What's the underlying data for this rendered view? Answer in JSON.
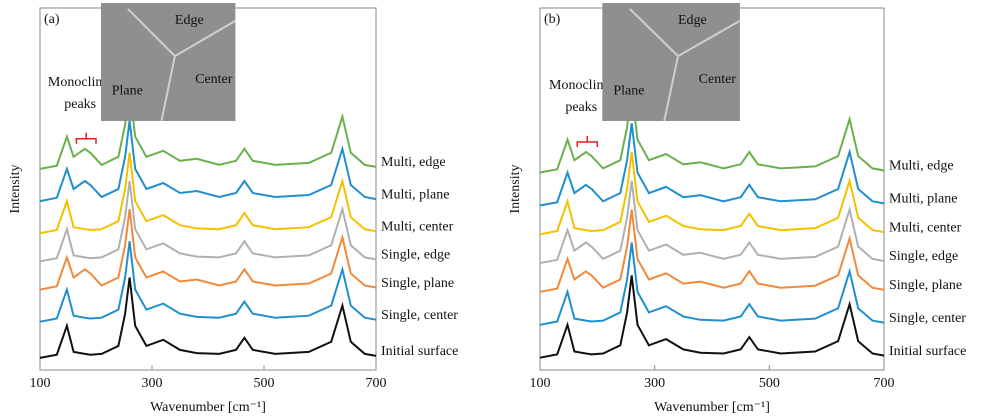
{
  "chart_data": [
    {
      "type": "line",
      "panel_label": "(a)",
      "annotation": [
        "Monoclinic",
        "peaks"
      ],
      "inset_labels": [
        "Edge",
        "Plane",
        "Center"
      ],
      "xlabel": "Wavenumber [cm⁻¹]",
      "ylabel": "Intensity",
      "xlim": [
        100,
        700
      ],
      "ylim": [
        0,
        90
      ],
      "xticks": [
        100,
        300,
        500,
        700
      ],
      "x": [
        100,
        130,
        148,
        160,
        180,
        190,
        210,
        240,
        252,
        260,
        270,
        290,
        320,
        350,
        380,
        420,
        450,
        465,
        480,
        520,
        580,
        620,
        640,
        655,
        680,
        700
      ],
      "series": [
        {
          "name": "Initial surface",
          "color": "#111111",
          "values": [
            3,
            3.8,
            11,
            4.5,
            4,
            3.8,
            4,
            6,
            14,
            23,
            11,
            6,
            7.5,
            5,
            4.2,
            4,
            5,
            8,
            5,
            4,
            4.5,
            7,
            16,
            7,
            4,
            3.5
          ]
        },
        {
          "name": "Single, center",
          "color": "#1f8fd0",
          "values": [
            12,
            12.8,
            20,
            13.5,
            13,
            12.8,
            13,
            15,
            23,
            32,
            20,
            15,
            16.5,
            14,
            13.2,
            13,
            14,
            17,
            14,
            13,
            13.5,
            16,
            25,
            16,
            13,
            12.5
          ]
        },
        {
          "name": "Single, plane",
          "color": "#f08a3c",
          "values": [
            20,
            20.8,
            28,
            23,
            25,
            24,
            21,
            23,
            31,
            40,
            28,
            23,
            24.5,
            22,
            22.5,
            21,
            22,
            25,
            22,
            21,
            21.5,
            24,
            33,
            24,
            21,
            20.5
          ]
        },
        {
          "name": "Single, edge",
          "color": "#b0b0b0",
          "values": [
            27,
            27.8,
            35,
            28.5,
            28,
            27.8,
            28,
            30,
            38,
            47,
            35,
            30,
            31.5,
            29,
            28.2,
            28,
            29,
            32,
            29,
            28,
            28.5,
            31,
            40,
            31,
            28,
            27.5
          ]
        },
        {
          "name": "Multi, center",
          "color": "#f5c000",
          "values": [
            34,
            34.8,
            42,
            35.5,
            35,
            34.8,
            35,
            37,
            45,
            54,
            42,
            37,
            38.5,
            36,
            35.2,
            35,
            36,
            39,
            36,
            35,
            35.5,
            38,
            47,
            38,
            35,
            34.5
          ]
        },
        {
          "name": "Multi, plane",
          "color": "#1f8fd0",
          "values": [
            42,
            42.8,
            50,
            45,
            47,
            46,
            43,
            45,
            53,
            62,
            50,
            45,
            46.5,
            44,
            44.5,
            43,
            44,
            47,
            44,
            43,
            43.5,
            46,
            55,
            46,
            43,
            42.5
          ]
        },
        {
          "name": "Multi, edge",
          "color": "#6ab04c",
          "values": [
            50,
            50.8,
            58,
            53,
            55,
            54,
            51,
            53,
            61,
            70,
            58,
            53,
            54.5,
            52,
            52.5,
            51,
            52,
            55,
            52,
            51,
            51.5,
            54,
            63,
            54,
            51,
            50.5
          ]
        }
      ]
    },
    {
      "type": "line",
      "panel_label": "(b)",
      "annotation": [
        "Monoclinic",
        "peaks"
      ],
      "inset_labels": [
        "Edge",
        "Plane",
        "Center"
      ],
      "xlabel": "Wavenumber [cm⁻¹]",
      "ylabel": "Intensity",
      "xlim": [
        100,
        700
      ],
      "ylim": [
        0,
        88
      ],
      "xticks": [
        100,
        300,
        500,
        700
      ],
      "x": [
        100,
        130,
        148,
        160,
        180,
        190,
        210,
        240,
        252,
        260,
        270,
        290,
        320,
        350,
        380,
        420,
        450,
        465,
        480,
        520,
        580,
        620,
        640,
        655,
        680,
        700
      ],
      "series": [
        {
          "name": "Initial surface",
          "color": "#111111",
          "values": [
            3,
            3.8,
            11,
            4.5,
            4,
            3.8,
            4,
            6,
            14,
            23,
            11,
            6,
            7.5,
            5,
            4.2,
            4,
            5,
            8,
            5,
            4,
            4.5,
            7,
            16,
            7,
            4,
            3.5
          ]
        },
        {
          "name": "Single, center",
          "color": "#1f8fd0",
          "values": [
            11,
            11.8,
            19,
            12.5,
            12,
            11.8,
            12,
            14,
            22,
            31,
            19,
            14,
            15.5,
            13,
            12.2,
            12,
            13,
            16,
            13,
            12,
            12.5,
            15,
            24,
            15,
            12,
            11.5
          ]
        },
        {
          "name": "Single, plane",
          "color": "#f08a3c",
          "values": [
            19,
            19.8,
            27,
            22,
            24,
            23,
            20,
            22,
            30,
            39,
            27,
            22,
            23.5,
            21,
            21.5,
            20,
            21,
            24,
            21,
            20,
            20.5,
            23,
            32,
            23,
            20,
            19.5
          ]
        },
        {
          "name": "Single, edge",
          "color": "#b0b0b0",
          "values": [
            26,
            26.8,
            34,
            29,
            31,
            30,
            27,
            29,
            37,
            46,
            34,
            29,
            30.5,
            28,
            28.5,
            27,
            28,
            31,
            28,
            27,
            27.5,
            30,
            39,
            30,
            27,
            26.5
          ]
        },
        {
          "name": "Multi, center",
          "color": "#f5c000",
          "values": [
            33,
            33.8,
            41,
            34.5,
            34,
            33.8,
            34,
            36,
            44,
            53,
            41,
            36,
            37.5,
            35,
            34.2,
            34,
            35,
            38,
            35,
            34,
            34.5,
            37,
            46,
            37,
            34,
            33.5
          ]
        },
        {
          "name": "Multi, plane",
          "color": "#1f8fd0",
          "values": [
            40,
            40.8,
            48,
            43,
            45,
            44,
            41,
            43,
            51,
            60,
            48,
            43,
            44.5,
            42,
            42.5,
            41,
            42,
            45,
            42,
            41,
            41.5,
            44,
            53,
            44,
            41,
            40.5
          ]
        },
        {
          "name": "Multi, edge",
          "color": "#6ab04c",
          "values": [
            48,
            48.8,
            56,
            51,
            53,
            52,
            49,
            51,
            59,
            68,
            56,
            51,
            52.5,
            50,
            50.5,
            49,
            50,
            53,
            50,
            49,
            49.5,
            52,
            61,
            52,
            49,
            48.5
          ]
        }
      ]
    }
  ]
}
